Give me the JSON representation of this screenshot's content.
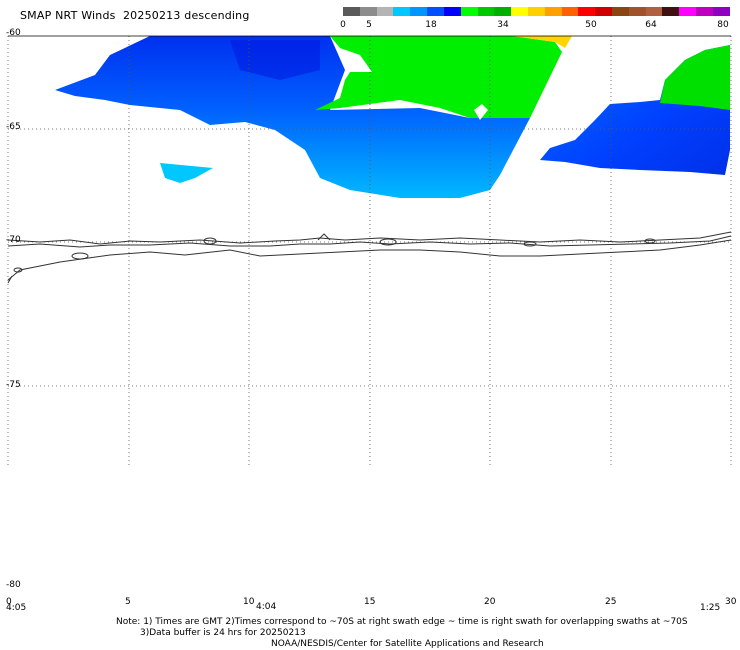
{
  "title": "SMAP NRT Winds  20250213 descending",
  "colorbar": {
    "labels": [
      "0",
      "5",
      "18",
      "34",
      "50",
      "64",
      "80"
    ],
    "colors": [
      "#5a5a5a",
      "#8c8c8c",
      "#b4b4b4",
      "#00c8ff",
      "#0096ff",
      "#0050ff",
      "#0000ff",
      "#00ff00",
      "#00c800",
      "#00b000",
      "#ffff00",
      "#ffd000",
      "#ffa000",
      "#ff6000",
      "#ff0000",
      "#d00000",
      "#8b4513",
      "#a0522d",
      "#b06040",
      "#401010",
      "#ff00ff",
      "#c000c0",
      "#9000c0"
    ]
  },
  "lat_labels": [
    "-60",
    "-65",
    "-70",
    "-75",
    "-80"
  ],
  "lon_labels": [
    "0",
    "5",
    "10",
    "15",
    "20",
    "25",
    "30"
  ],
  "time_labels": [
    "4:05",
    "4:04",
    "1:25"
  ],
  "notes": {
    "line1": "Note: 1) Times are GMT 2)Times correspond to ~70S at right swath edge ~ time is right swath for overlapping swaths at ~70S",
    "line2": "3)Data buffer is 24 hrs for 20250213",
    "line3": "NOAA/NESDIS/Center for Satellite Applications and Research"
  }
}
